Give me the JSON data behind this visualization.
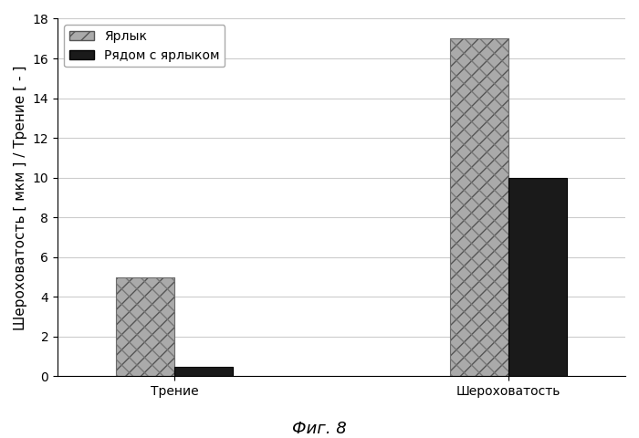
{
  "categories": [
    "Трение",
    "Шероховатость"
  ],
  "yarlyk_values": [
    5.0,
    17.0
  ],
  "ryadom_values": [
    0.5,
    10.0
  ],
  "yarlyk_color_light": "#b0b0b0",
  "yarlyk_color_dark": "#808080",
  "ryadom_color": "#1a1a1a",
  "ylabel": "Шероховатость [ мкм ] / Трение [ - ]",
  "ylim": [
    0,
    18
  ],
  "yticks": [
    0,
    2,
    4,
    6,
    8,
    10,
    12,
    14,
    16,
    18
  ],
  "legend_label1": "Ярлык",
  "legend_label2": "Рядом с ярлыком",
  "caption": "Фиг. 8",
  "bar_width": 0.35,
  "group_positions": [
    1.0,
    3.0
  ],
  "background_color": "#ffffff",
  "grid_color": "#cccccc",
  "title_fontsize": 13,
  "axis_fontsize": 11,
  "tick_fontsize": 10,
  "legend_fontsize": 10
}
